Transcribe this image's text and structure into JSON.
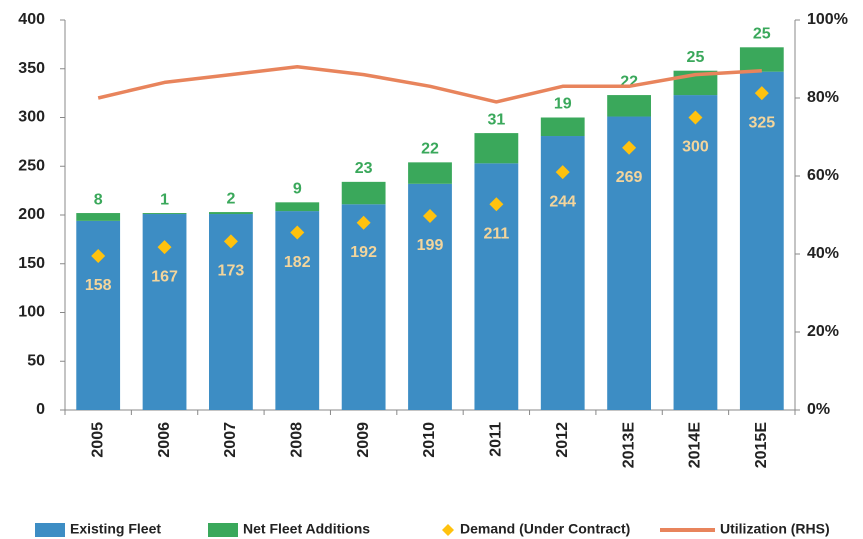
{
  "chart_data": {
    "type": "bar",
    "stacked": true,
    "categories": [
      "2005",
      "2006",
      "2007",
      "2008",
      "2009",
      "2010",
      "2011",
      "2012",
      "2013E",
      "2014E",
      "2015E"
    ],
    "series": [
      {
        "name": "Existing Fleet",
        "type": "bar",
        "color": "#3d8dc4",
        "values": [
          194,
          201,
          201,
          204,
          211,
          232,
          253,
          281,
          301,
          323,
          347
        ]
      },
      {
        "name": "Net Fleet Additions",
        "type": "bar",
        "color": "#3aa85b",
        "values": [
          8,
          1,
          2,
          9,
          23,
          22,
          31,
          19,
          22,
          25,
          25
        ]
      },
      {
        "name": "Demand (Under Contract)",
        "type": "scatter",
        "color": "#ffc20e",
        "values": [
          158,
          167,
          173,
          182,
          192,
          199,
          211,
          244,
          269,
          300,
          325
        ]
      },
      {
        "name": "Utilization (RHS)",
        "type": "line",
        "axis": "y2",
        "color": "#e8845c",
        "values": [
          80,
          84,
          86,
          88,
          86,
          83,
          79,
          83,
          83,
          86,
          87
        ]
      }
    ],
    "ylim": [
      0,
      400
    ],
    "yticks": [
      0,
      50,
      100,
      150,
      200,
      250,
      300,
      350,
      400
    ],
    "y2lim": [
      0,
      100
    ],
    "y2ticks": [
      {
        "value": 0,
        "label": "0%"
      },
      {
        "value": 20,
        "label": "20%"
      },
      {
        "value": 40,
        "label": "40%"
      },
      {
        "value": 60,
        "label": "60%"
      },
      {
        "value": 80,
        "label": "80%"
      },
      {
        "value": 100,
        "label": "100%"
      }
    ],
    "legend": "bottom"
  }
}
